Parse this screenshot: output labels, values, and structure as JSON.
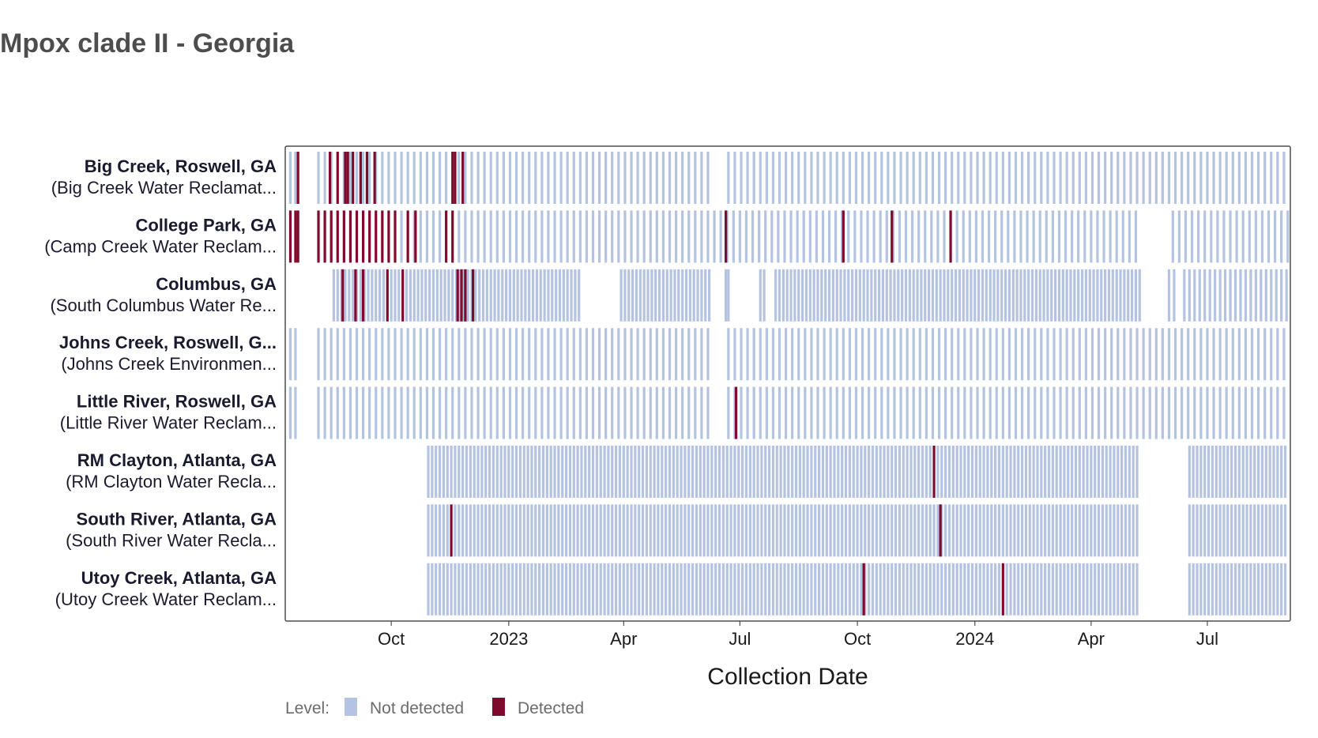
{
  "chart_data": {
    "type": "strip",
    "title": "Mpox clade II - Georgia",
    "xlabel": "Collection Date",
    "xlim": [
      "2022-07-10",
      "2024-09-04"
    ],
    "x_ticks": [
      {
        "date": "2022-10-01",
        "label": "Oct"
      },
      {
        "date": "2023-01-01",
        "label": "2023"
      },
      {
        "date": "2023-04-01",
        "label": "Apr"
      },
      {
        "date": "2023-07-01",
        "label": "Jul"
      },
      {
        "date": "2023-10-01",
        "label": "Oct"
      },
      {
        "date": "2024-01-01",
        "label": "2024"
      },
      {
        "date": "2024-04-01",
        "label": "Apr"
      },
      {
        "date": "2024-07-01",
        "label": "Jul"
      }
    ],
    "legend": {
      "title": "Level:",
      "placement": "bottom-left",
      "items": [
        {
          "key": "not_detected",
          "label": "Not detected",
          "color": "#b4c3e1"
        },
        {
          "key": "detected",
          "label": "Detected",
          "color": "#800a2d"
        }
      ]
    },
    "series": [
      {
        "name": "Big Creek, Roswell, GA",
        "subtitle": "(Big Creek Water Reclamat...",
        "segments": [
          {
            "start": "2022-07-14",
            "end": "2022-07-20",
            "every_days": 4
          },
          {
            "start": "2022-08-05",
            "end": "2023-06-09",
            "every_days": 5
          },
          {
            "start": "2023-06-22",
            "end": "2024-09-02",
            "every_days": 5
          }
        ],
        "detected": [
          "2022-07-20",
          "2022-08-14",
          "2022-08-20",
          "2022-08-26",
          "2022-08-28",
          "2022-09-01",
          "2022-09-07",
          "2022-09-12",
          "2022-09-18",
          "2022-11-18",
          "2022-11-20",
          "2022-11-26"
        ]
      },
      {
        "name": "College Park, GA",
        "subtitle": "(Camp Creek Water Reclam...",
        "segments": [
          {
            "start": "2022-07-14",
            "end": "2022-07-20",
            "every_days": 4
          },
          {
            "start": "2022-08-05",
            "end": "2024-05-07",
            "every_days": 5
          },
          {
            "start": "2024-06-04",
            "end": "2024-09-02",
            "every_days": 5
          }
        ],
        "detected": [
          "2022-07-14",
          "2022-07-18",
          "2022-07-20",
          "2022-08-05",
          "2022-08-10",
          "2022-08-15",
          "2022-08-20",
          "2022-08-25",
          "2022-08-30",
          "2022-09-04",
          "2022-09-09",
          "2022-09-14",
          "2022-09-19",
          "2022-09-24",
          "2022-09-29",
          "2022-10-04",
          "2022-10-14",
          "2022-10-20",
          "2022-11-13",
          "2022-11-18",
          "2023-06-20",
          "2023-09-20",
          "2023-10-28",
          "2023-12-13"
        ]
      },
      {
        "name": "Columbus, GA",
        "subtitle": "(South Columbus Water Re...",
        "segments": [
          {
            "start": "2022-08-17",
            "end": "2023-02-27",
            "every_days": 3
          },
          {
            "start": "2023-03-30",
            "end": "2023-06-08",
            "every_days": 3
          },
          {
            "start": "2023-06-20",
            "end": "2023-06-22",
            "every_days": 2
          },
          {
            "start": "2023-07-17",
            "end": "2023-07-20",
            "every_days": 3
          },
          {
            "start": "2023-07-29",
            "end": "2024-05-11",
            "every_days": 3
          },
          {
            "start": "2024-06-01",
            "end": "2024-06-05",
            "every_days": 4
          },
          {
            "start": "2024-06-13",
            "end": "2024-09-02",
            "every_days": 4
          }
        ],
        "detected": [
          "2022-08-24",
          "2022-09-03",
          "2022-09-09",
          "2022-09-28",
          "2022-10-10",
          "2022-11-22",
          "2022-11-25",
          "2022-11-28",
          "2022-12-04"
        ]
      },
      {
        "name": "Johns Creek, Roswell, G...",
        "subtitle": "(Johns Creek Environmen...",
        "segments": [
          {
            "start": "2022-07-14",
            "end": "2022-07-20",
            "every_days": 4
          },
          {
            "start": "2022-08-05",
            "end": "2023-06-09",
            "every_days": 5
          },
          {
            "start": "2023-06-22",
            "end": "2024-09-02",
            "every_days": 5
          }
        ],
        "detected": []
      },
      {
        "name": "Little River, Roswell, GA",
        "subtitle": "(Little River Water Reclam...",
        "segments": [
          {
            "start": "2022-07-14",
            "end": "2022-07-20",
            "every_days": 4
          },
          {
            "start": "2022-08-05",
            "end": "2023-06-09",
            "every_days": 5
          },
          {
            "start": "2023-06-22",
            "end": "2024-09-02",
            "every_days": 5
          }
        ],
        "detected": [
          "2023-06-28"
        ]
      },
      {
        "name": "RM Clayton, Atlanta, GA",
        "subtitle": "(RM Clayton Water Recla...",
        "segments": [
          {
            "start": "2022-10-30",
            "end": "2024-05-07",
            "every_days": 3
          },
          {
            "start": "2024-06-17",
            "end": "2024-09-02",
            "every_days": 3
          }
        ],
        "detected": [
          "2023-11-30"
        ]
      },
      {
        "name": "South River, Atlanta, GA",
        "subtitle": "(South River Water Recla...",
        "segments": [
          {
            "start": "2022-10-30",
            "end": "2024-05-07",
            "every_days": 3
          },
          {
            "start": "2024-06-17",
            "end": "2024-09-02",
            "every_days": 3
          }
        ],
        "detected": [
          "2022-11-17",
          "2023-12-05"
        ]
      },
      {
        "name": "Utoy Creek, Atlanta, GA",
        "subtitle": "(Utoy Creek Water Reclam...",
        "segments": [
          {
            "start": "2022-10-30",
            "end": "2024-05-07",
            "every_days": 3
          },
          {
            "start": "2024-06-17",
            "end": "2024-09-02",
            "every_days": 3
          }
        ],
        "detected": [
          "2023-10-06",
          "2024-01-23"
        ]
      }
    ]
  }
}
